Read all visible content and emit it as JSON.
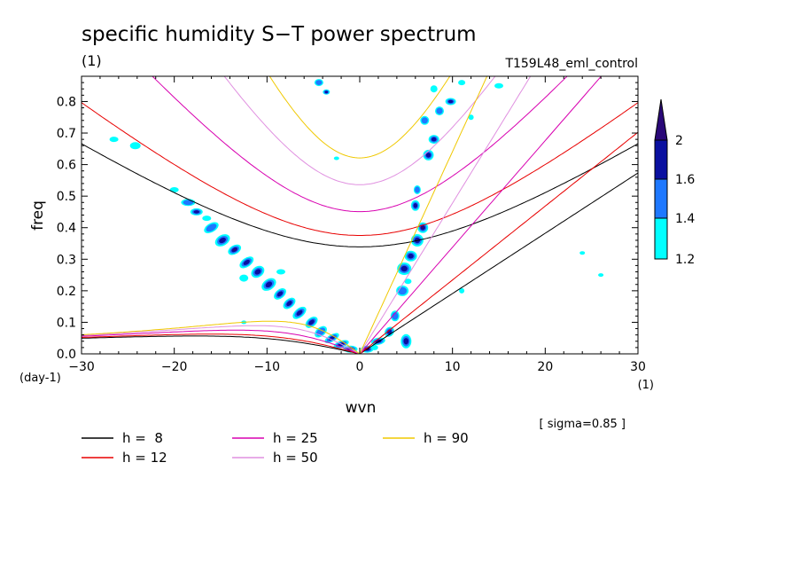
{
  "chart_data": {
    "type": "heatmap",
    "title": "specific humidity S−T power spectrum",
    "units_left": "(1)",
    "run_label": "T159L48_eml_control",
    "xlabel": "wvn",
    "ylabel": "freq",
    "y_unit": "(day-1)",
    "x_unit": "(1)",
    "sigma_note": "[ sigma=0.85 ]",
    "xlim": [
      -30,
      30
    ],
    "ylim": [
      0,
      0.88
    ],
    "x_ticks": [
      "−30",
      "−20",
      "−10",
      "0",
      "10",
      "20",
      "30"
    ],
    "x_tick_values": [
      -30,
      -20,
      -10,
      0,
      10,
      20,
      30
    ],
    "y_ticks": [
      "0.0",
      "0.1",
      "0.2",
      "0.3",
      "0.4",
      "0.5",
      "0.6",
      "0.7",
      "0.8"
    ],
    "y_tick_values": [
      0,
      0.1,
      0.2,
      0.3,
      0.4,
      0.5,
      0.6,
      0.7,
      0.8
    ],
    "colorbar": {
      "levels": [
        "1.2",
        "1.4",
        "1.6",
        "2"
      ],
      "level_values": [
        1.2,
        1.4,
        1.6,
        2.0
      ],
      "colors": [
        "#00ffff",
        "#1e78ff",
        "#0a10a0",
        "#2a0878"
      ]
    },
    "dispersion_curves": [
      {
        "label": "h =  8",
        "h": 8,
        "color": "#000000"
      },
      {
        "label": "h = 12",
        "h": 12,
        "color": "#e80000"
      },
      {
        "label": "h = 25",
        "h": 25,
        "color": "#d800b0"
      },
      {
        "label": "h = 50",
        "h": 50,
        "color": "#e090e0"
      },
      {
        "label": "h = 90",
        "h": 90,
        "color": "#f0c800"
      }
    ],
    "spectral_features": [
      {
        "kind": "westward_band",
        "from": [
          -19,
          0.5
        ],
        "to": [
          -1,
          0.02
        ],
        "max_level": 2.0
      },
      {
        "kind": "eastward_band",
        "from": [
          1,
          0.02
        ],
        "to": [
          11,
          0.86
        ],
        "max_level": 2.0
      },
      {
        "kind": "blob",
        "at": [
          5,
          0.04
        ],
        "max_level": 1.6
      },
      {
        "kind": "blob",
        "at": [
          -24,
          0.66
        ],
        "max_level": 1.2
      }
    ]
  }
}
